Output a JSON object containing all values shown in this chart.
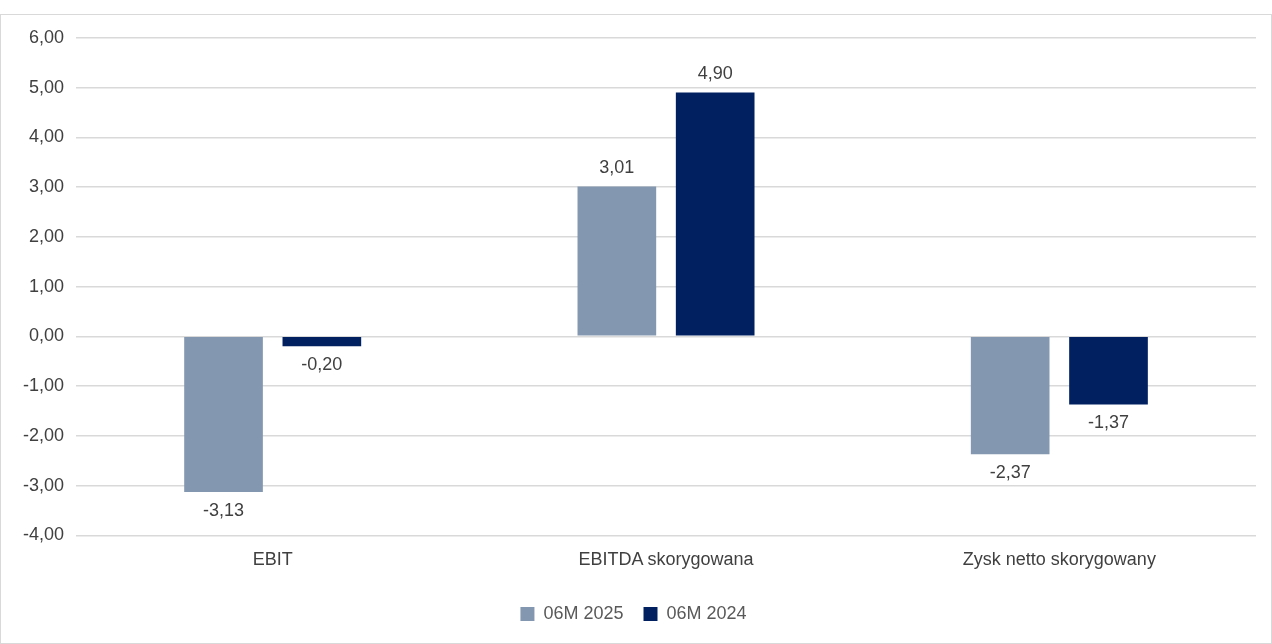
{
  "chart_data": {
    "type": "bar",
    "categories": [
      "EBIT",
      "EBITDA skorygowana",
      "Zysk netto skorygowany"
    ],
    "series": [
      {
        "name": "06M 2025",
        "color": "#8497b0",
        "values": [
          -3.13,
          3.01,
          -2.37
        ],
        "value_labels": [
          "-3,13",
          "3,01",
          "-2,37"
        ]
      },
      {
        "name": "06M 2024",
        "color": "#002060",
        "values": [
          -0.2,
          4.9,
          -1.37
        ],
        "value_labels": [
          "-0,20",
          "4,90",
          "-1,37"
        ]
      }
    ],
    "ylim": [
      -4,
      6
    ],
    "yticks": [
      {
        "value": -4,
        "label": "-4,00"
      },
      {
        "value": -3,
        "label": "-3,00"
      },
      {
        "value": -2,
        "label": "-2,00"
      },
      {
        "value": -1,
        "label": "-1,00"
      },
      {
        "value": 0,
        "label": "0,00"
      },
      {
        "value": 1,
        "label": "1,00"
      },
      {
        "value": 2,
        "label": "2,00"
      },
      {
        "value": 3,
        "label": "3,00"
      },
      {
        "value": 4,
        "label": "4,00"
      },
      {
        "value": 5,
        "label": "5,00"
      },
      {
        "value": 6,
        "label": "6,00"
      }
    ],
    "grid": "y",
    "legend": "bottom"
  }
}
